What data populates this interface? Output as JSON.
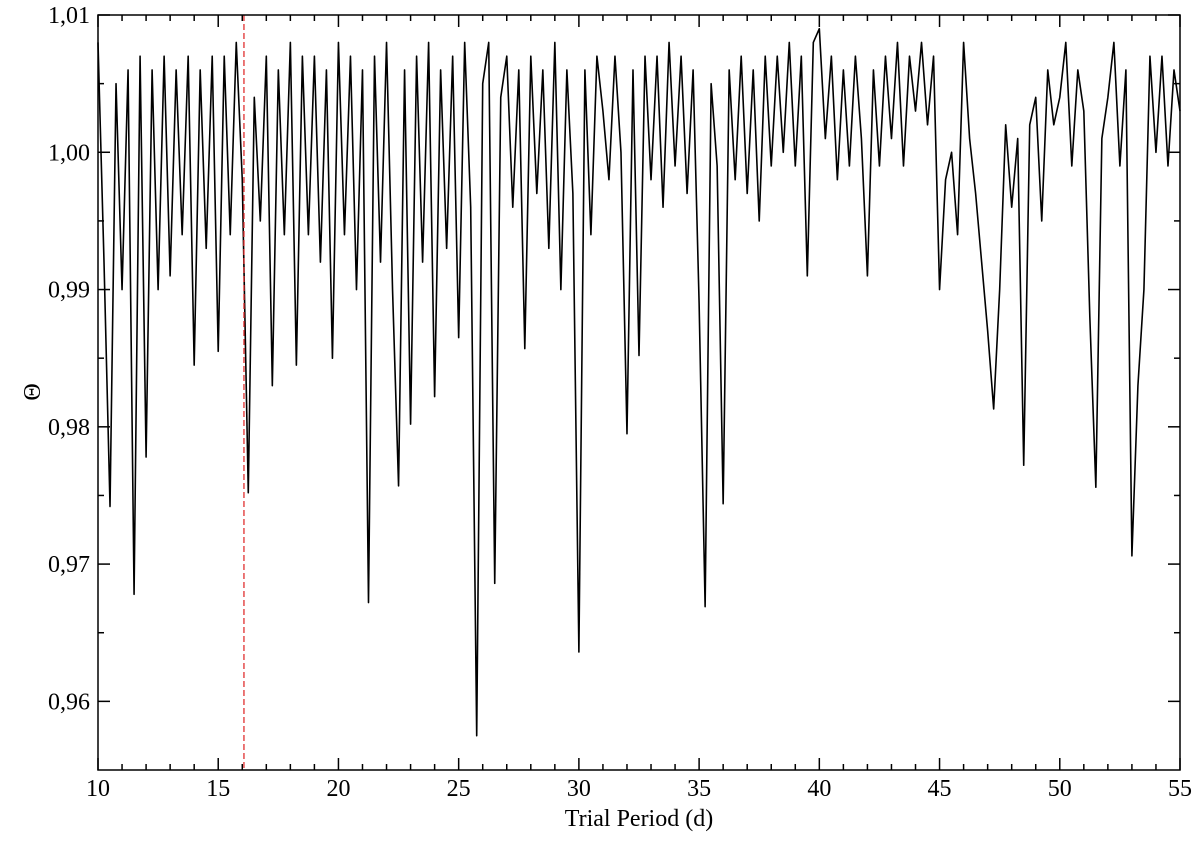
{
  "chart_data": {
    "type": "line",
    "xlabel": "Trial Period (d)",
    "ylabel": "Θ",
    "color": "#000000",
    "xlim": [
      10,
      55
    ],
    "ylim": [
      0.955,
      1.01
    ],
    "xticks": [
      10,
      15,
      20,
      25,
      30,
      35,
      40,
      45,
      50,
      55
    ],
    "xminorticks": [
      11,
      12,
      13,
      14,
      16,
      17,
      18,
      19,
      21,
      22,
      23,
      24,
      26,
      27,
      28,
      29,
      31,
      32,
      33,
      34,
      36,
      37,
      38,
      39,
      41,
      42,
      43,
      44,
      46,
      47,
      48,
      49,
      51,
      52,
      53,
      54
    ],
    "yticks": [
      {
        "value": 0.96,
        "label": "0,96"
      },
      {
        "value": 0.97,
        "label": "0,97"
      },
      {
        "value": 0.98,
        "label": "0,98"
      },
      {
        "value": 0.99,
        "label": "0,99"
      },
      {
        "value": 1.0,
        "label": "1,00"
      },
      {
        "value": 1.01,
        "label": "1,01"
      }
    ],
    "yminorticks": [
      0.965,
      0.975,
      0.985,
      0.995,
      1.005
    ],
    "vline": {
      "x": 16.07,
      "color": "#e03030",
      "style": "dashed"
    },
    "x": [
      10,
      10.25,
      10.5,
      10.75,
      11,
      11.25,
      11.5,
      11.75,
      12,
      12.25,
      12.5,
      12.75,
      13,
      13.25,
      13.5,
      13.75,
      14,
      14.25,
      14.5,
      14.75,
      15,
      15.25,
      15.5,
      15.75,
      16,
      16.25,
      16.5,
      16.75,
      17,
      17.25,
      17.5,
      17.75,
      18,
      18.25,
      18.5,
      18.75,
      19,
      19.25,
      19.5,
      19.75,
      20,
      20.25,
      20.5,
      20.75,
      21,
      21.25,
      21.5,
      21.75,
      22,
      22.25,
      22.5,
      22.75,
      23,
      23.25,
      23.5,
      23.75,
      24,
      24.25,
      24.5,
      24.75,
      25,
      25.25,
      25.5,
      25.75,
      26,
      26.25,
      26.5,
      26.75,
      27,
      27.25,
      27.5,
      27.75,
      28,
      28.25,
      28.5,
      28.75,
      29,
      29.25,
      29.5,
      29.75,
      30,
      30.25,
      30.5,
      30.75,
      31,
      31.25,
      31.5,
      31.75,
      32,
      32.25,
      32.5,
      32.75,
      33,
      33.25,
      33.5,
      33.75,
      34,
      34.25,
      34.5,
      34.75,
      35,
      35.25,
      35.5,
      35.75,
      36,
      36.25,
      36.5,
      36.75,
      37,
      37.25,
      37.5,
      37.75,
      38,
      38.25,
      38.5,
      38.75,
      39,
      39.25,
      39.5,
      39.75,
      40,
      40.25,
      40.5,
      40.75,
      41,
      41.25,
      41.5,
      41.75,
      42,
      42.25,
      42.5,
      42.75,
      43,
      43.25,
      43.5,
      43.75,
      44,
      44.25,
      44.5,
      44.75,
      45,
      45.25,
      45.5,
      45.75,
      46,
      46.25,
      46.5,
      46.75,
      47,
      47.25,
      47.5,
      47.75,
      48,
      48.25,
      48.5,
      48.75,
      49,
      49.25,
      49.5,
      49.75,
      50,
      50.25,
      50.5,
      50.75,
      51,
      51.25,
      51.5,
      51.75,
      52,
      52.25,
      52.5,
      52.75,
      53,
      53.25,
      53.5,
      53.75,
      54,
      54.25,
      54.5,
      54.75,
      55
    ],
    "values": [
      1.008,
      0.992,
      0.9742,
      1.005,
      0.99,
      1.006,
      0.9678,
      1.007,
      0.9778,
      1.006,
      0.99,
      1.007,
      0.991,
      1.006,
      0.994,
      1.007,
      0.9845,
      1.006,
      0.993,
      1.007,
      0.9855,
      1.007,
      0.994,
      1.008,
      0.998,
      0.9752,
      1.004,
      0.995,
      1.007,
      0.983,
      1.006,
      0.994,
      1.008,
      0.9845,
      1.007,
      0.994,
      1.007,
      0.992,
      1.006,
      0.985,
      1.008,
      0.994,
      1.007,
      0.99,
      1.006,
      0.9672,
      1.007,
      0.992,
      1.008,
      0.99,
      0.9757,
      1.006,
      0.9802,
      1.007,
      0.992,
      1.008,
      0.9822,
      1.006,
      0.993,
      1.007,
      0.9865,
      1.008,
      0.996,
      0.9575,
      1.005,
      1.008,
      0.9686,
      1.004,
      1.007,
      0.996,
      1.006,
      0.9857,
      1.007,
      0.997,
      1.006,
      0.993,
      1.008,
      0.99,
      1.006,
      0.997,
      0.9636,
      1.006,
      0.994,
      1.007,
      1.003,
      0.998,
      1.007,
      1.0,
      0.9795,
      1.006,
      0.9852,
      1.007,
      0.998,
      1.007,
      0.996,
      1.008,
      0.999,
      1.007,
      0.997,
      1.006,
      0.989,
      0.9669,
      1.005,
      0.999,
      0.9744,
      1.006,
      0.998,
      1.007,
      0.997,
      1.006,
      0.995,
      1.007,
      0.999,
      1.007,
      1.0,
      1.008,
      0.999,
      1.007,
      0.991,
      1.008,
      1.009,
      1.001,
      1.007,
      0.998,
      1.006,
      0.999,
      1.007,
      1.001,
      0.991,
      1.006,
      0.999,
      1.007,
      1.001,
      1.008,
      0.999,
      1.007,
      1.003,
      1.008,
      1.002,
      1.007,
      0.99,
      0.998,
      1.0,
      0.994,
      1.008,
      1.001,
      0.997,
      0.992,
      0.987,
      0.9813,
      0.99,
      1.002,
      0.996,
      1.001,
      0.9772,
      1.002,
      1.004,
      0.995,
      1.006,
      1.002,
      1.004,
      1.008,
      0.999,
      1.006,
      1.003,
      0.988,
      0.9756,
      1.001,
      1.004,
      1.008,
      0.999,
      1.006,
      0.9706,
      0.983,
      0.99,
      1.007,
      1.0,
      1.007,
      0.999,
      1.006,
      1.003
    ]
  }
}
